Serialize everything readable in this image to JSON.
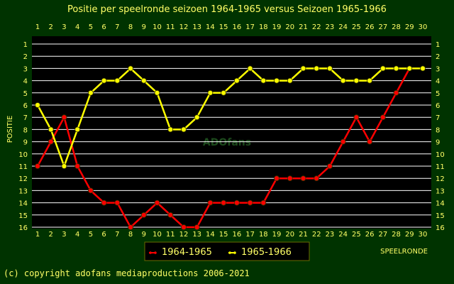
{
  "chart_data": {
    "type": "line",
    "title": "Positie per speelronde seizoen 1964-1965 versus Seizoen 1965-1966",
    "xlabel": "SPEELRONDE",
    "ylabel": "POSITIE",
    "x": [
      1,
      2,
      3,
      4,
      5,
      6,
      7,
      8,
      9,
      10,
      11,
      12,
      13,
      14,
      15,
      16,
      17,
      18,
      19,
      20,
      21,
      22,
      23,
      24,
      25,
      26,
      27,
      28,
      29,
      30
    ],
    "xlim": [
      1,
      30
    ],
    "ylim": [
      1,
      16
    ],
    "y_inverted": true,
    "grid": true,
    "legend_position": "bottom-center",
    "series": [
      {
        "name": "1964-1965",
        "color": "#ff0000",
        "values": [
          11,
          9,
          7,
          11,
          13,
          14,
          14,
          16,
          15,
          14,
          15,
          16,
          16,
          14,
          14,
          14,
          14,
          14,
          12,
          12,
          12,
          12,
          11,
          9,
          7,
          9,
          7,
          5,
          3,
          null
        ]
      },
      {
        "name": "1965-1966",
        "color": "#ffff00",
        "values": [
          6,
          8,
          11,
          8,
          5,
          4,
          4,
          3,
          4,
          5,
          8,
          8,
          7,
          5,
          5,
          4,
          3,
          4,
          4,
          4,
          3,
          3,
          3,
          4,
          4,
          4,
          3,
          3,
          3,
          3
        ]
      }
    ]
  },
  "legend": {
    "items": [
      "1964-1965",
      "1965-1966"
    ]
  },
  "watermark": "ADOfans",
  "copyright": "(c) copyright adofans mediaproductions 2006-2021"
}
